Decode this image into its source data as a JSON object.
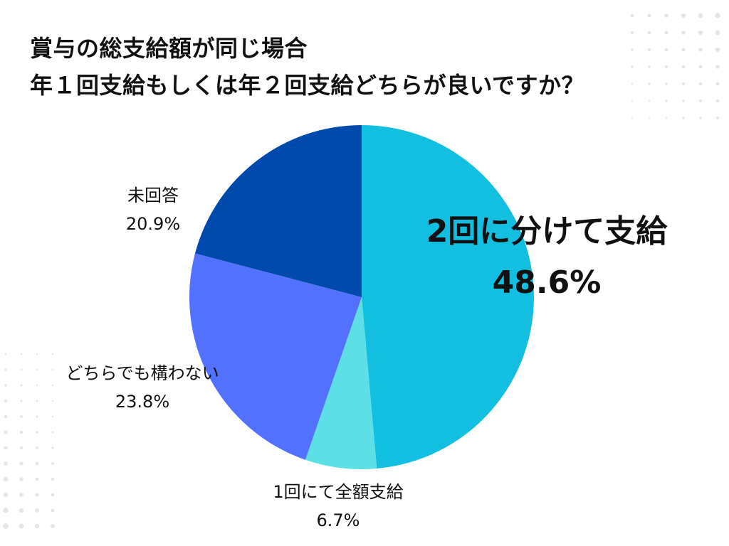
{
  "title": {
    "line1": "賞与の総支給額が同じ場合",
    "line2": "年１回支給もしくは年２回支給どちらが良いですか？"
  },
  "colors": {
    "background": "#ffffff",
    "text": "#111111",
    "decor_dots": "#e6e6e6"
  },
  "chart_data": {
    "type": "pie",
    "slices": [
      {
        "label": "2回に分けて支給",
        "value": 48.6,
        "value_label": "48.6%",
        "color": "#12BFE0"
      },
      {
        "label": "1回にて全額支給",
        "value": 6.7,
        "value_label": "6.7%",
        "color": "#5CE0E6"
      },
      {
        "label": "どちらでも構わない",
        "value": 23.8,
        "value_label": "23.8%",
        "color": "#5271FF"
      },
      {
        "label": "未回答",
        "value": 20.9,
        "value_label": "20.9%",
        "color": "#004AAD"
      }
    ],
    "start_angle": "12 o'clock",
    "direction": "clockwise"
  }
}
